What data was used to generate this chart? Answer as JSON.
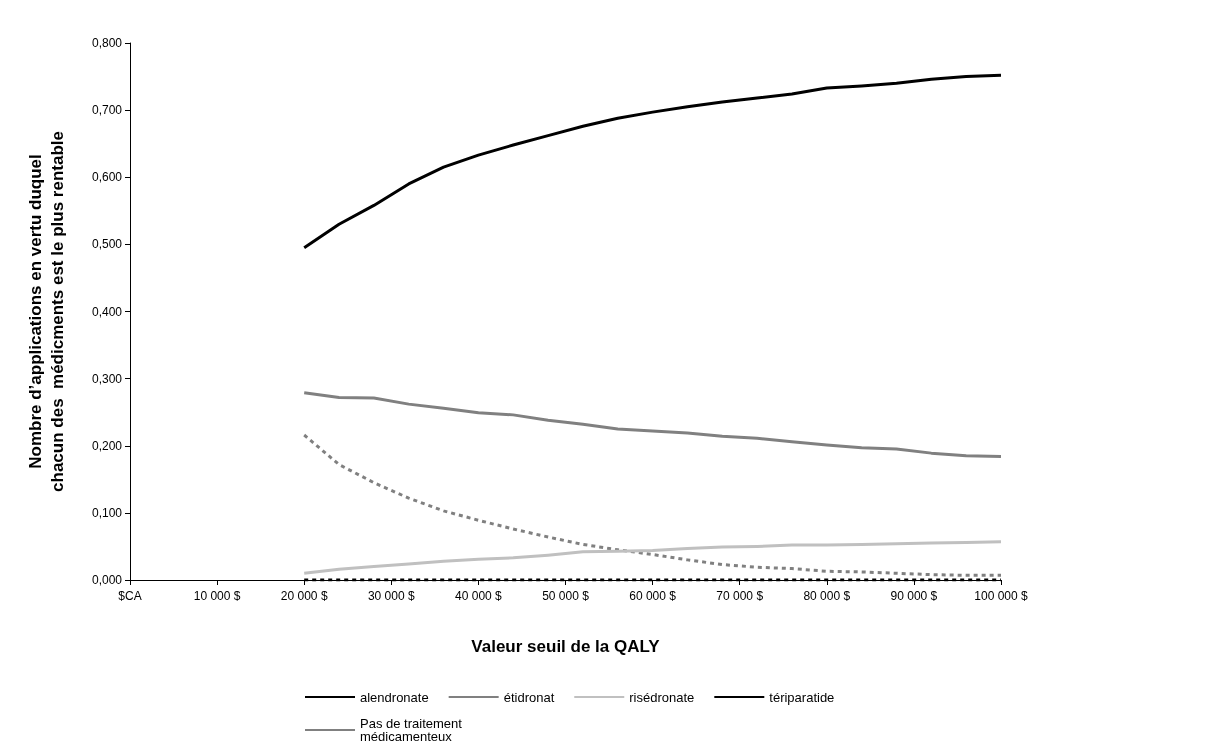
{
  "chart_data": {
    "type": "line",
    "xlabel": "Valeur seuil de la QALY",
    "ylabel": "Nombre d’applications en vertu duquel\nchacun des  médicments est le plus rentable",
    "x": [
      20000,
      24000,
      28000,
      32000,
      36000,
      40000,
      44000,
      48000,
      52000,
      56000,
      60000,
      64000,
      68000,
      72000,
      76000,
      80000,
      84000,
      88000,
      92000,
      96000,
      100000
    ],
    "series": [
      {
        "name": "alendronate",
        "color": "#000000",
        "line_style": "solid",
        "values": [
          0.495,
          0.53,
          0.558,
          0.59,
          0.615,
          0.633,
          0.648,
          0.662,
          0.676,
          0.688,
          0.697,
          0.705,
          0.712,
          0.718,
          0.724,
          0.733,
          0.736,
          0.74,
          0.746,
          0.75,
          0.752
        ]
      },
      {
        "name": "étidronat",
        "color": "#808080",
        "line_style": "solid",
        "values": [
          0.279,
          0.272,
          0.271,
          0.262,
          0.256,
          0.249,
          0.246,
          0.238,
          0.232,
          0.225,
          0.222,
          0.219,
          0.214,
          0.211,
          0.206,
          0.201,
          0.197,
          0.195,
          0.189,
          0.185,
          0.184
        ]
      },
      {
        "name": "risédronate",
        "color": "#c0c0c0",
        "line_style": "solid",
        "values": [
          0.01,
          0.016,
          0.02,
          0.024,
          0.028,
          0.031,
          0.033,
          0.037,
          0.042,
          0.043,
          0.044,
          0.047,
          0.049,
          0.05,
          0.052,
          0.052,
          0.053,
          0.054,
          0.055,
          0.056,
          0.057
        ]
      },
      {
        "name": "tériparatide",
        "color": "#000000",
        "line_style": "dashed",
        "values": [
          0,
          0,
          0,
          0,
          0,
          0,
          0,
          0,
          0,
          0,
          0,
          0,
          0,
          0,
          0,
          0,
          0,
          0,
          0,
          0,
          0
        ]
      },
      {
        "name": "Pas de traitement médicamenteux",
        "color": "#808080",
        "line_style": "dashed",
        "values": [
          0.216,
          0.172,
          0.145,
          0.122,
          0.103,
          0.089,
          0.076,
          0.064,
          0.053,
          0.045,
          0.038,
          0.03,
          0.023,
          0.019,
          0.017,
          0.013,
          0.012,
          0.01,
          0.008,
          0.007,
          0.007
        ]
      }
    ],
    "xlim": [
      0,
      100000
    ],
    "xticks": [
      {
        "value": 0,
        "label": "$CA"
      },
      {
        "value": 10000,
        "label": "10 000 $"
      },
      {
        "value": 20000,
        "label": "20 000 $"
      },
      {
        "value": 30000,
        "label": "30 000 $"
      },
      {
        "value": 40000,
        "label": "40 000 $"
      },
      {
        "value": 50000,
        "label": "50 000 $"
      },
      {
        "value": 60000,
        "label": "60 000 $"
      },
      {
        "value": 70000,
        "label": "70 000 $"
      },
      {
        "value": 80000,
        "label": "80 000 $"
      },
      {
        "value": 90000,
        "label": "90 000 $"
      },
      {
        "value": 100000,
        "label": "100 000 $"
      }
    ],
    "ylim": [
      0,
      0.8
    ],
    "yticks": [
      {
        "value": 0,
        "label": "0,000"
      },
      {
        "value": 0.1,
        "label": "0,100"
      },
      {
        "value": 0.2,
        "label": "0,200"
      },
      {
        "value": 0.3,
        "label": "0,300"
      },
      {
        "value": 0.4,
        "label": "0,400"
      },
      {
        "value": 0.5,
        "label": "0,500"
      },
      {
        "value": 0.6,
        "label": "0,600"
      },
      {
        "value": 0.7,
        "label": "0,700"
      },
      {
        "value": 0.8,
        "label": "0,800"
      }
    ],
    "grid": false,
    "legend": "bottom",
    "marker": "none"
  }
}
